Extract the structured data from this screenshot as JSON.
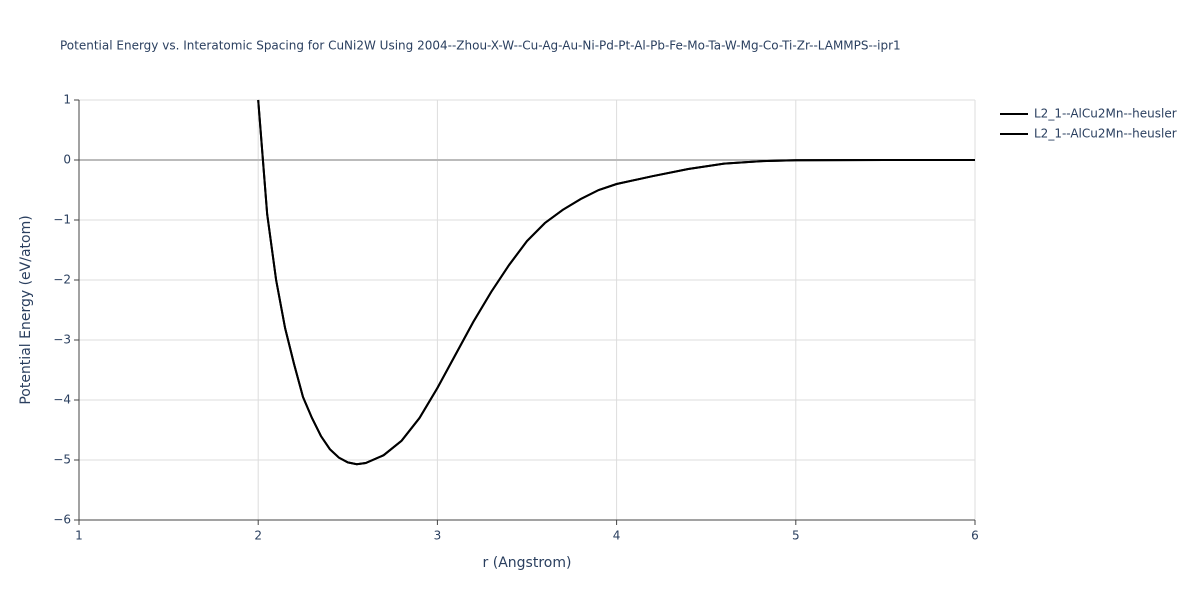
{
  "chart_data": {
    "type": "line",
    "title": "Potential Energy vs. Interatomic Spacing for CuNi2W Using 2004--Zhou-X-W--Cu-Ag-Au-Ni-Pd-Pt-Al-Pb-Fe-Mo-Ta-W-Mg-Co-Ti-Zr--LAMMPS--ipr1",
    "x_label": "r (Angstrom)",
    "y_label": "Potential Energy (eV/atom)",
    "x": [
      2.0,
      2.05,
      2.1,
      2.15,
      2.2,
      2.25,
      2.3,
      2.35,
      2.4,
      2.45,
      2.5,
      2.55,
      2.6,
      2.7,
      2.8,
      2.9,
      3.0,
      3.1,
      3.2,
      3.3,
      3.4,
      3.5,
      3.6,
      3.7,
      3.8,
      3.9,
      4.0,
      4.2,
      4.4,
      4.6,
      4.8,
      5.0,
      5.5,
      6.0
    ],
    "series": [
      {
        "name": "L2_1--AlCu2Mn--heusler",
        "color": "#000000",
        "values": [
          1.0,
          -0.9,
          -2.0,
          -2.8,
          -3.4,
          -3.95,
          -4.3,
          -4.6,
          -4.82,
          -4.96,
          -5.04,
          -5.07,
          -5.05,
          -4.92,
          -4.68,
          -4.3,
          -3.8,
          -3.25,
          -2.7,
          -2.2,
          -1.75,
          -1.35,
          -1.05,
          -0.83,
          -0.65,
          -0.5,
          -0.4,
          -0.27,
          -0.15,
          -0.06,
          -0.02,
          -0.005,
          0,
          0
        ]
      },
      {
        "name": "L2_1--AlCu2Mn--heusler",
        "color": "#000000",
        "values": [
          1.0,
          -0.9,
          -2.0,
          -2.8,
          -3.4,
          -3.95,
          -4.3,
          -4.6,
          -4.82,
          -4.96,
          -5.04,
          -5.07,
          -5.05,
          -4.92,
          -4.68,
          -4.3,
          -3.8,
          -3.25,
          -2.7,
          -2.2,
          -1.75,
          -1.35,
          -1.05,
          -0.83,
          -0.65,
          -0.5,
          -0.4,
          -0.27,
          -0.15,
          -0.06,
          -0.02,
          -0.005,
          0,
          0
        ]
      }
    ],
    "xlim": [
      1,
      6
    ],
    "ylim": [
      -6,
      1
    ],
    "xticks": [
      1,
      2,
      3,
      4,
      5,
      6
    ],
    "yticks": [
      {
        "value": -6,
        "label": "−6"
      },
      {
        "value": -5,
        "label": "−5"
      },
      {
        "value": -4,
        "label": "−4"
      },
      {
        "value": -3,
        "label": "−3"
      },
      {
        "value": -2,
        "label": "−2"
      },
      {
        "value": -1,
        "label": "−1"
      },
      0,
      1
    ],
    "grid": true
  }
}
